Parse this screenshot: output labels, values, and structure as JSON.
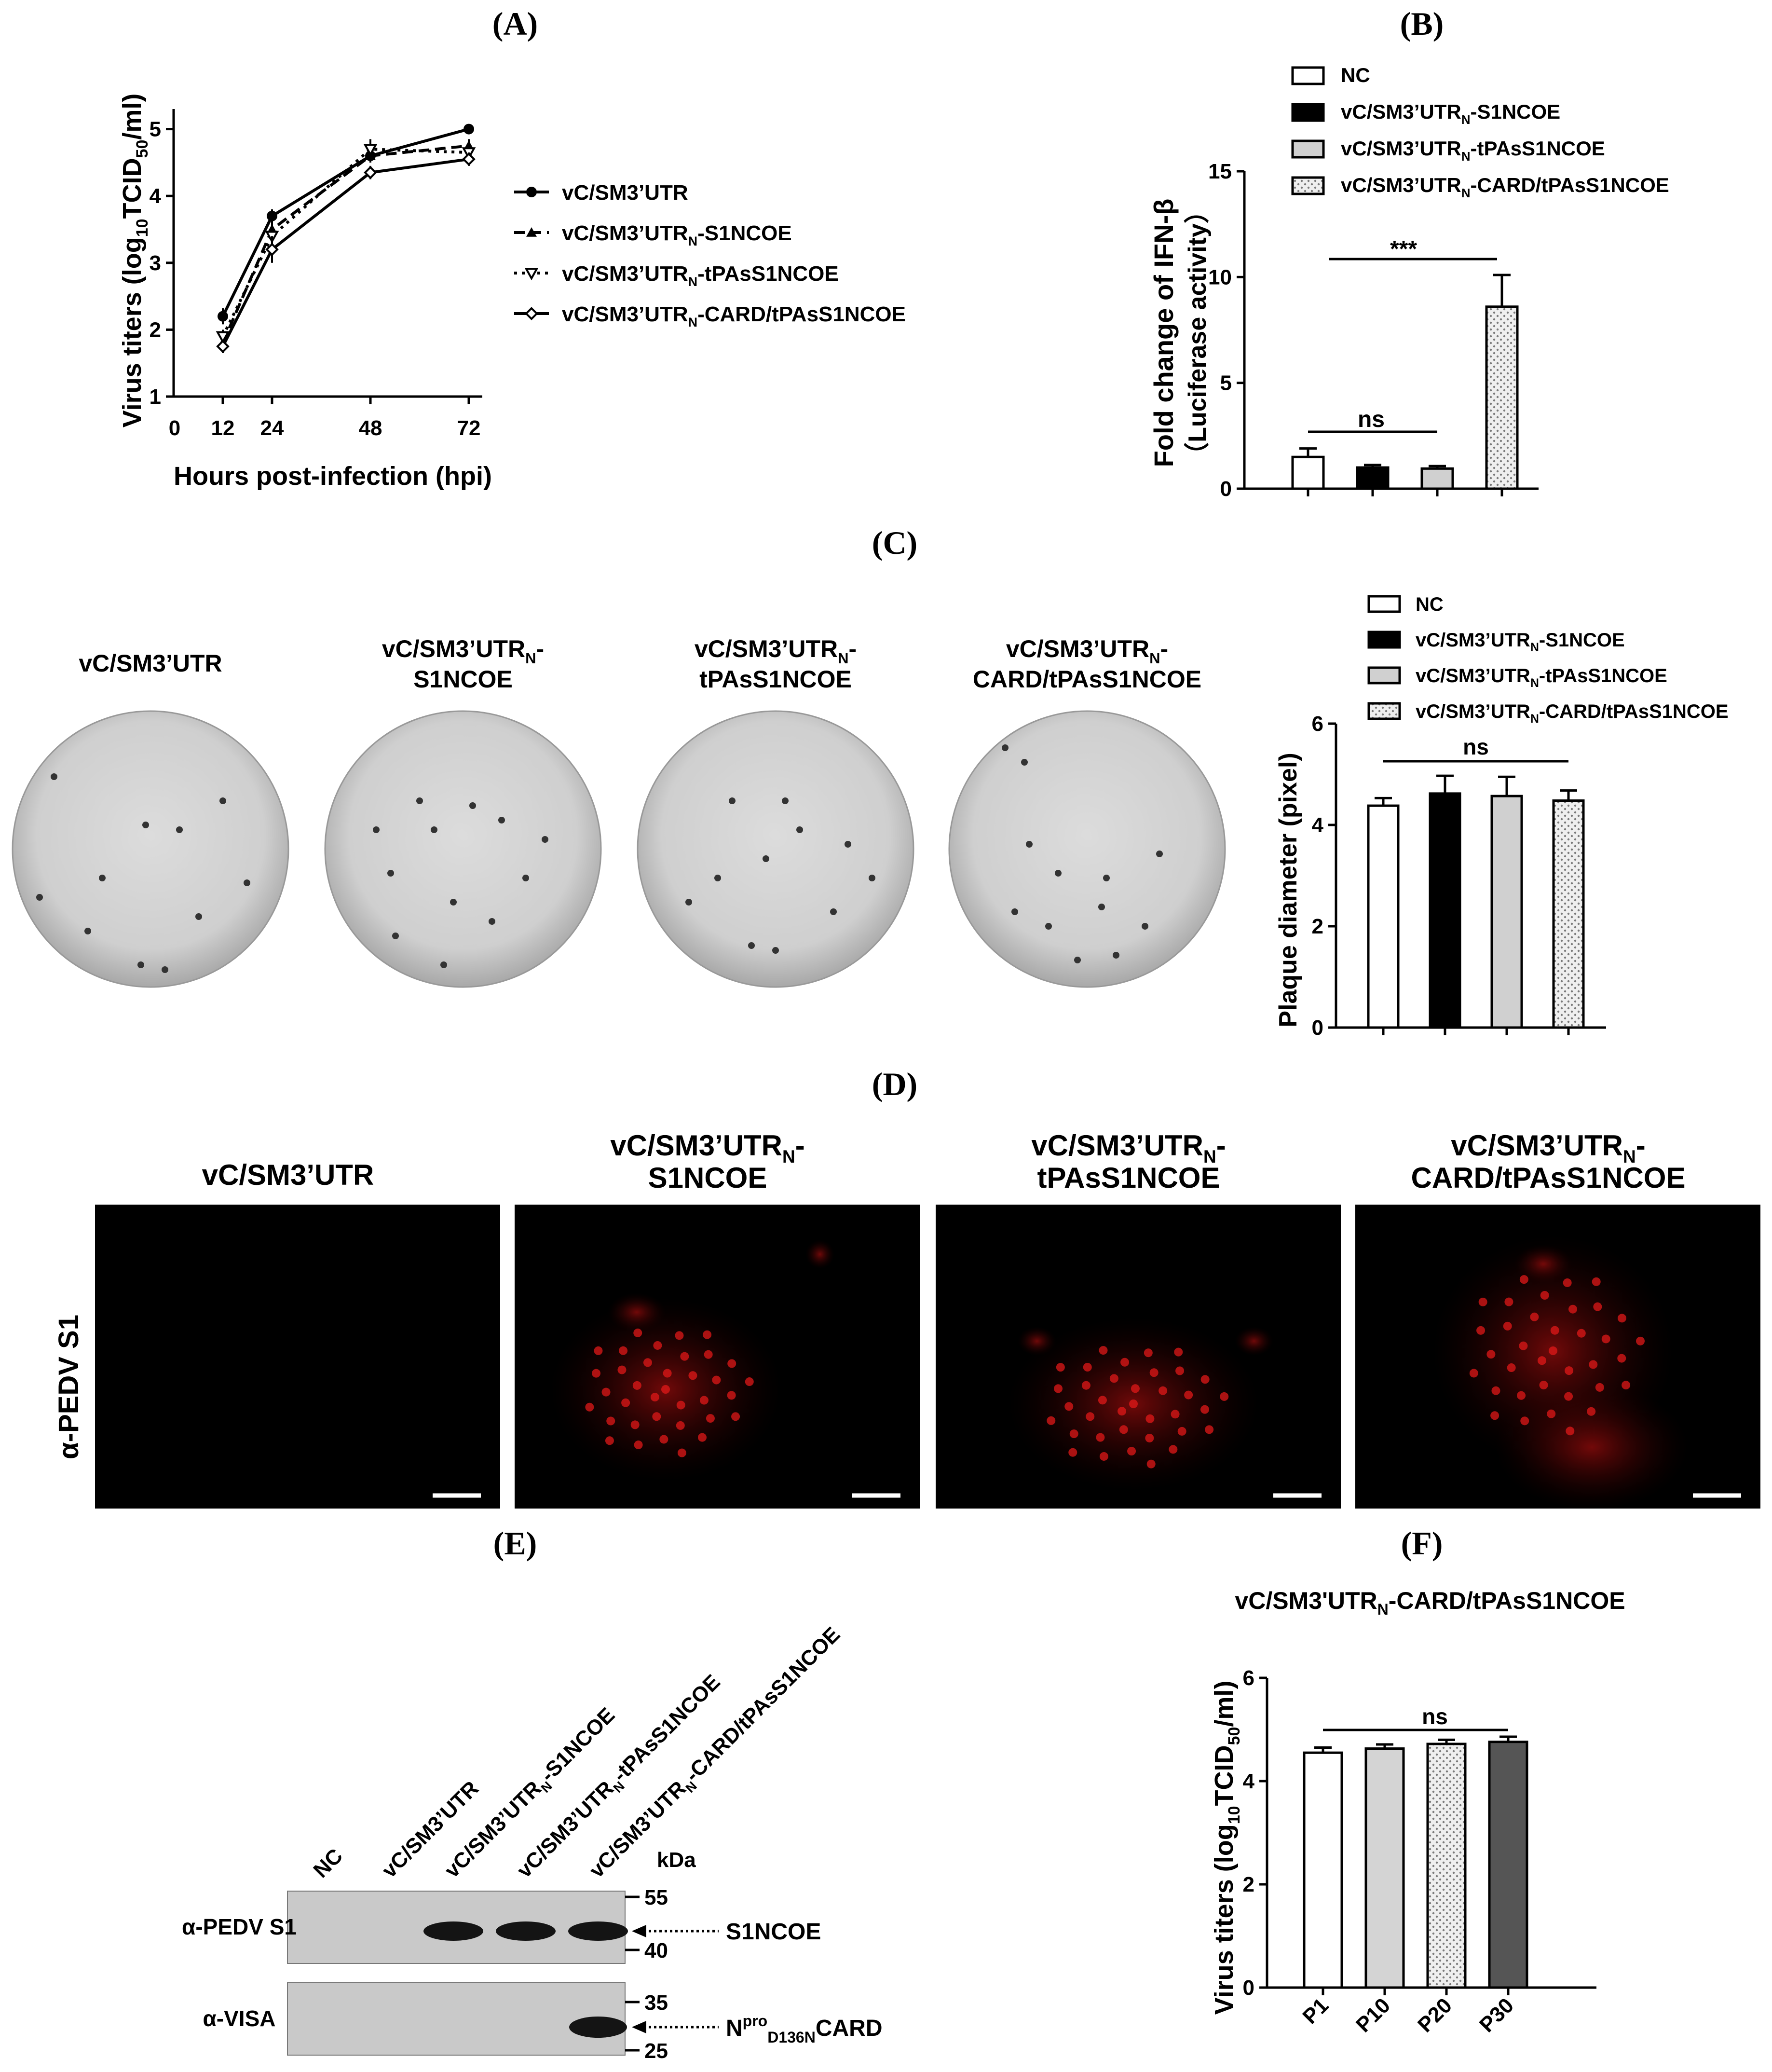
{
  "panels": {
    "A": "(A)",
    "B": "(B)",
    "C": "(C)",
    "D": "(D)",
    "E": "(E)",
    "F": "(F)"
  },
  "panel_a": {
    "chart_data": {
      "type": "line",
      "x": [
        12,
        24,
        48,
        72
      ],
      "xticks": [
        "0",
        "12",
        "24",
        "48",
        "72"
      ],
      "yticks": [
        "1",
        "2",
        "3",
        "4",
        "5"
      ],
      "xlabel": "Hours post-infection (hpi)",
      "ylabel_parts": [
        "Virus titers (log",
        "10",
        "TCID",
        "50",
        "/ml)"
      ],
      "xlim": [
        0,
        80
      ],
      "ylim": [
        1,
        5.3
      ],
      "series": [
        {
          "name_main": "vC/SM3’UTR",
          "name_sub": "",
          "name_tail": "",
          "values": [
            2.2,
            3.7,
            4.6,
            5.0
          ],
          "err": [
            0.12,
            0.1,
            0.1,
            0.05
          ],
          "marker": "circle",
          "dash": ""
        },
        {
          "name_main": "vC/SM3’UTR",
          "name_sub": "N",
          "name_tail": "-S1NCOE",
          "values": [
            1.8,
            3.5,
            4.6,
            4.75
          ],
          "err": [
            0.1,
            0.15,
            0.1,
            0.1
          ],
          "marker": "triangle-up",
          "dash": "22,12"
        },
        {
          "name_main": "vC/SM3’UTR",
          "name_sub": "N",
          "name_tail": "-tPAsS1NCOE",
          "values": [
            1.9,
            3.4,
            4.7,
            4.65
          ],
          "err": [
            0.1,
            0.2,
            0.15,
            0.1
          ],
          "marker": "triangle-down",
          "dash": "6,10"
        },
        {
          "name_main": "vC/SM3’UTR",
          "name_sub": "N",
          "name_tail": "-CARD/tPAsS1NCOE",
          "values": [
            1.75,
            3.2,
            4.35,
            4.55
          ],
          "err": [
            0.1,
            0.2,
            0.1,
            0.1
          ],
          "marker": "diamond",
          "dash": ""
        }
      ]
    }
  },
  "panel_b": {
    "chart_data": {
      "type": "bar",
      "yticks": [
        "0",
        "5",
        "10",
        "15"
      ],
      "ylim": [
        0,
        15
      ],
      "ylabel_line1": "Fold change of IFN-β",
      "ylabel_line2": "（Luciferase activity）",
      "series": [
        {
          "name_main": "NC",
          "name_sub": "",
          "name_tail": "",
          "value": 1.5,
          "err": 0.4,
          "fill": "#ffffff"
        },
        {
          "name_main": "vC/SM3’UTR",
          "name_sub": "N",
          "name_tail": "-S1NCOE",
          "value": 1.0,
          "err": 0.12,
          "fill": "#000000"
        },
        {
          "name_main": "vC/SM3’UTR",
          "name_sub": "N",
          "name_tail": "-tPAsS1NCOE",
          "value": 0.95,
          "err": 0.12,
          "fill": "#d0d0d0"
        },
        {
          "name_main": "vC/SM3’UTR",
          "name_sub": "N",
          "name_tail": "-CARD/tPAsS1NCOE",
          "value": 8.6,
          "err": 1.5,
          "fill": "dots"
        }
      ],
      "sig_top": "***",
      "sig_bottom": "ns"
    }
  },
  "panel_c": {
    "plate_labels": [
      [
        "vC/SM3’UTR"
      ],
      [
        "vC/SM3’UTR",
        "N",
        "-",
        "S1NCOE"
      ],
      [
        "vC/SM3’UTR",
        "N",
        "-",
        "tPAsS1NCOE"
      ],
      [
        "vC/SM3’UTR",
        "N",
        "-",
        "CARD/tPAsS1NCOE"
      ]
    ],
    "chart_data": {
      "type": "bar",
      "yticks": [
        "0",
        "2",
        "4",
        "6"
      ],
      "ylim": [
        0,
        6
      ],
      "ylabel": "Plaque diameter (pixel)",
      "series": [
        {
          "name_main": "NC",
          "name_sub": "",
          "name_tail": "",
          "value": 4.38,
          "err": 0.15,
          "fill": "#ffffff"
        },
        {
          "name_main": "vC/SM3’UTR",
          "name_sub": "N",
          "name_tail": "-S1NCOE",
          "value": 4.62,
          "err": 0.35,
          "fill": "#000000"
        },
        {
          "name_main": "vC/SM3’UTR",
          "name_sub": "N",
          "name_tail": "-tPAsS1NCOE",
          "value": 4.57,
          "err": 0.38,
          "fill": "#d0d0d0"
        },
        {
          "name_main": "vC/SM3’UTR",
          "name_sub": "N",
          "name_tail": "-CARD/tPAsS1NCOE",
          "value": 4.48,
          "err": 0.2,
          "fill": "dots"
        }
      ],
      "sig": "ns"
    }
  },
  "panel_d": {
    "row_label": "α-PEDV S1",
    "titles": [
      [
        "vC/SM3’UTR"
      ],
      [
        "vC/SM3’UTR",
        "N",
        "-",
        "S1NCOE"
      ],
      [
        "vC/SM3’UTR",
        "N",
        "-",
        "tPAsS1NCOE"
      ],
      [
        "vC/SM3’UTR",
        "N",
        "-",
        "CARD/tPAsS1NCOE"
      ]
    ]
  },
  "panel_e": {
    "lanes": [
      {
        "main": "NC",
        "sub": "",
        "tail": ""
      },
      {
        "main": "vC/SM3’UTR",
        "sub": "",
        "tail": ""
      },
      {
        "main": "vC/SM3’UTR",
        "sub": "N",
        "tail": "-S1NCOE"
      },
      {
        "main": "vC/SM3’UTR",
        "sub": "N",
        "tail": "-tPAsS1NCOE"
      },
      {
        "main": "vC/SM3’UTR",
        "sub": "N",
        "tail": "-CARD/tPAsS1NCOE"
      }
    ],
    "kda": "kDa",
    "blot1_label": "α-PEDV S1",
    "blot1_markers": [
      "55",
      "40"
    ],
    "blot1_band": "S1NCOE",
    "blot2_label": "α-VISA",
    "blot2_markers": [
      "35",
      "25"
    ],
    "blot2_band_main": "N",
    "blot2_band_sup": "pro",
    "blot2_band_sub": "D136N",
    "blot2_band_tail": "CARD"
  },
  "panel_f": {
    "title_main": "vC/SM3'UTR",
    "title_sub": "N",
    "title_tail": "-CARD/tPAsS1NCOE",
    "chart_data": {
      "type": "bar",
      "categories": [
        "P1",
        "P10",
        "P20",
        "P30"
      ],
      "values": [
        4.55,
        4.63,
        4.72,
        4.76
      ],
      "err": [
        0.1,
        0.08,
        0.08,
        0.1
      ],
      "yticks": [
        "0",
        "2",
        "4",
        "6"
      ],
      "ylim": [
        0,
        6
      ],
      "ylabel_parts": [
        "Virus titers (log",
        "10",
        "TCID",
        "50",
        "/ml)"
      ],
      "fills": [
        "#ffffff",
        "#d4d4d4",
        "dots",
        "#555555"
      ],
      "sig": "ns"
    }
  }
}
